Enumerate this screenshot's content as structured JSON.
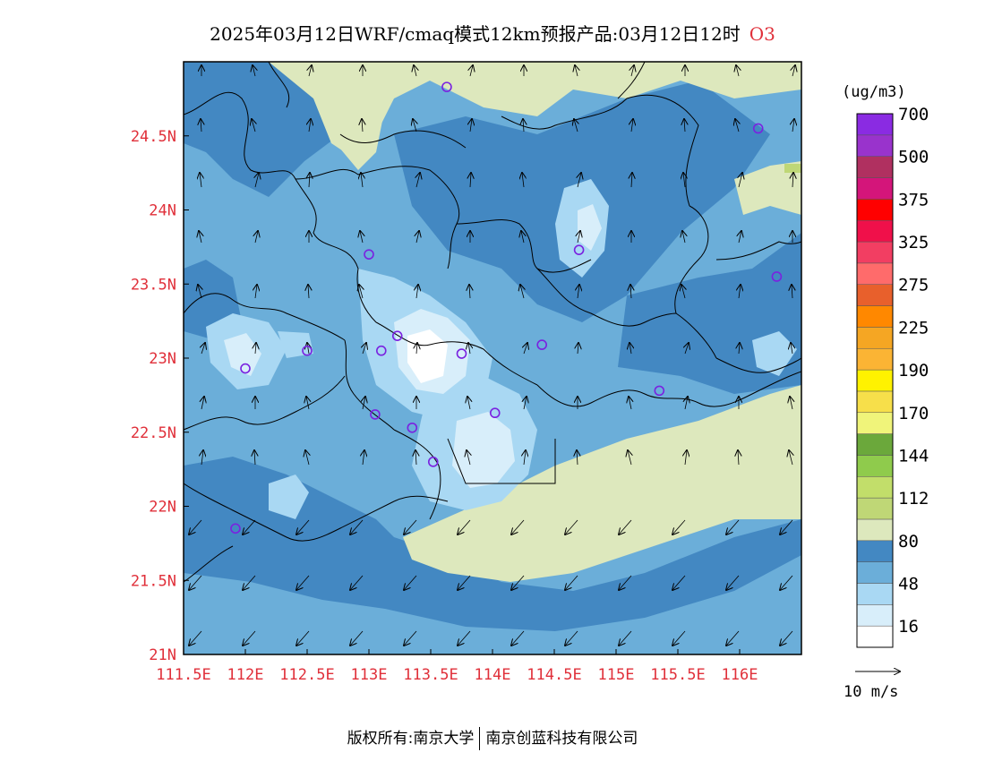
{
  "title": {
    "text": "2025年03月12日WRF/cmaq模式12km预报产品:03月12日12时",
    "species": "O3"
  },
  "map": {
    "lon_range": [
      111.5,
      116.5
    ],
    "lat_range": [
      21.0,
      25.0
    ],
    "lon_ticks": [
      {
        "value": 111.5,
        "label": "111.5E"
      },
      {
        "value": 112.0,
        "label": "112E"
      },
      {
        "value": 112.5,
        "label": "112.5E"
      },
      {
        "value": 113.0,
        "label": "113E"
      },
      {
        "value": 113.5,
        "label": "113.5E"
      },
      {
        "value": 114.0,
        "label": "114E"
      },
      {
        "value": 114.5,
        "label": "114.5E"
      },
      {
        "value": 115.0,
        "label": "115E"
      },
      {
        "value": 115.5,
        "label": "115.5E"
      },
      {
        "value": 116.0,
        "label": "116E"
      }
    ],
    "lat_ticks": [
      {
        "value": 21.0,
        "label": "21N"
      },
      {
        "value": 21.5,
        "label": "21.5N"
      },
      {
        "value": 22.0,
        "label": "22N"
      },
      {
        "value": 22.5,
        "label": "22.5N"
      },
      {
        "value": 23.0,
        "label": "23N"
      },
      {
        "value": 23.5,
        "label": "23.5N"
      },
      {
        "value": 24.0,
        "label": "24N"
      },
      {
        "value": 24.5,
        "label": "24.5N"
      }
    ],
    "tick_label_color": "#e0303a",
    "stations": [
      {
        "lon": 113.63,
        "lat": 24.83
      },
      {
        "lon": 116.15,
        "lat": 24.55
      },
      {
        "lon": 113.0,
        "lat": 23.7
      },
      {
        "lon": 114.7,
        "lat": 23.73
      },
      {
        "lon": 116.3,
        "lat": 23.55
      },
      {
        "lon": 113.23,
        "lat": 23.15
      },
      {
        "lon": 112.5,
        "lat": 23.05
      },
      {
        "lon": 113.1,
        "lat": 23.05
      },
      {
        "lon": 113.75,
        "lat": 23.03
      },
      {
        "lon": 114.4,
        "lat": 23.09
      },
      {
        "lon": 112.0,
        "lat": 22.93
      },
      {
        "lon": 115.35,
        "lat": 22.78
      },
      {
        "lon": 113.05,
        "lat": 22.62
      },
      {
        "lon": 113.35,
        "lat": 22.53
      },
      {
        "lon": 114.02,
        "lat": 22.63
      },
      {
        "lon": 113.52,
        "lat": 22.3
      },
      {
        "lon": 111.92,
        "lat": 21.85
      }
    ]
  },
  "legend": {
    "unit": "(ug/m3)",
    "colors": [
      "#ffffff",
      "#d8eefa",
      "#a9d8f3",
      "#6baed9",
      "#4388c2",
      "#dde8bd",
      "#bfd776",
      "#c2de6a",
      "#8fcb4c",
      "#6ba83b",
      "#f0f47a",
      "#f7df4a",
      "#fff200",
      "#fbb434",
      "#f5a623",
      "#ff8800",
      "#e8602c",
      "#ff6b6b",
      "#f23e62",
      "#f0104a",
      "#ff0000",
      "#d4157a",
      "#b03060",
      "#9933cc",
      "#8a2be2"
    ],
    "labels": [
      "16",
      "48",
      "80",
      "112",
      "144",
      "170",
      "190",
      "225",
      "275",
      "325",
      "375",
      "500",
      "700"
    ]
  },
  "wind_scale": {
    "label": "10 m/s"
  },
  "footer": {
    "left": "版权所有:南京大学",
    "right": "南京创蓝科技有限公司"
  }
}
